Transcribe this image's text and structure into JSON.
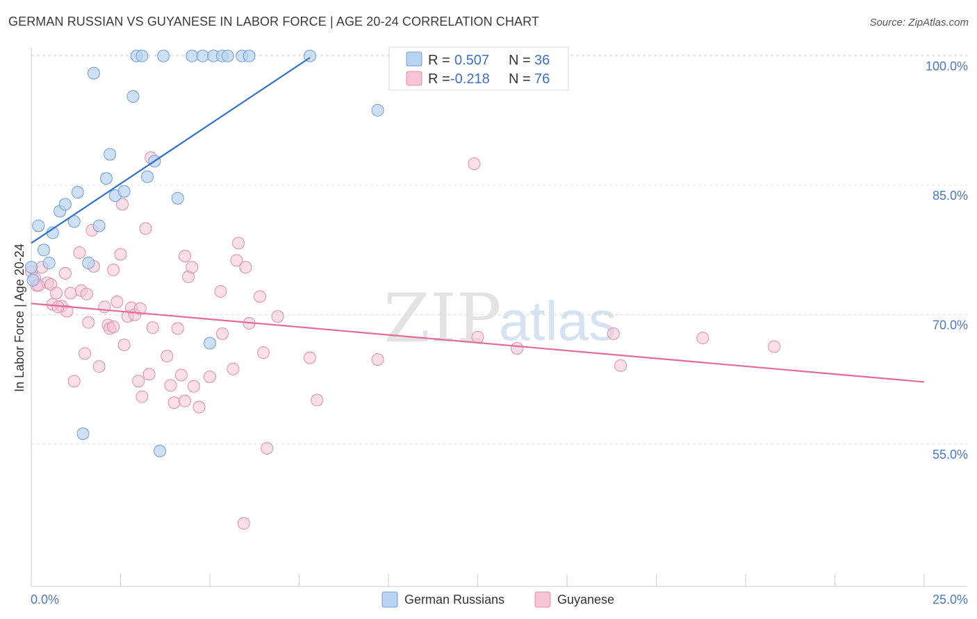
{
  "title": "GERMAN RUSSIAN VS GUYANESE IN LABOR FORCE | AGE 20-24 CORRELATION CHART",
  "source": "Source: ZipAtlas.com",
  "watermark": {
    "zip": "ZIP",
    "atlas": "atlas"
  },
  "legend": {
    "r_label": "R =",
    "n_label": "N =",
    "rows": [
      {
        "r": "0.507",
        "n": "36"
      },
      {
        "r": "-0.218",
        "n": "76"
      }
    ]
  },
  "colors": {
    "blue_fill": "#b9d3f2",
    "blue_stroke": "#6d9ed9",
    "blue_line": "#2f6fcc",
    "pink_fill": "#f7c5d5",
    "pink_stroke": "#e58aaa",
    "pink_line": "#e46a98",
    "tick_text": "#4a78c8",
    "grid": "#dddddd"
  },
  "chart_data": {
    "type": "scatter",
    "title": "GERMAN RUSSIAN VS GUYANESE IN LABOR FORCE | AGE 20-24 CORRELATION CHART",
    "xlabel": "",
    "ylabel": "In Labor Force | Age 20-24",
    "xlim": [
      0,
      25
    ],
    "ylim": [
      38.5,
      101.5
    ],
    "x_tick_labels": [
      "0.0%",
      "25.0%"
    ],
    "y_ticks": [
      55,
      70,
      85,
      100
    ],
    "y_tick_labels": [
      "55.0%",
      "70.0%",
      "85.0%",
      "100.0%"
    ],
    "grid": true,
    "legend_position": "top-center",
    "series": [
      {
        "name": "German Russians",
        "r": 0.507,
        "n": 36,
        "trend": {
          "x0": 0.0,
          "y0": 78.3,
          "x1": 7.8,
          "y1": 99.8
        },
        "points": [
          [
            0.0,
            75.5
          ],
          [
            0.2,
            80.3
          ],
          [
            0.35,
            77.5
          ],
          [
            0.5,
            76.0
          ],
          [
            0.6,
            79.5
          ],
          [
            0.8,
            82.0
          ],
          [
            0.95,
            82.8
          ],
          [
            1.2,
            80.8
          ],
          [
            1.3,
            84.2
          ],
          [
            1.6,
            76.0
          ],
          [
            1.75,
            98.0
          ],
          [
            1.9,
            80.3
          ],
          [
            2.1,
            85.8
          ],
          [
            2.2,
            88.6
          ],
          [
            2.35,
            83.8
          ],
          [
            2.6,
            84.3
          ],
          [
            2.85,
            95.3
          ],
          [
            2.95,
            100.0
          ],
          [
            3.1,
            100.0
          ],
          [
            3.25,
            86.0
          ],
          [
            3.45,
            87.8
          ],
          [
            3.7,
            100.0
          ],
          [
            4.1,
            83.5
          ],
          [
            4.5,
            100.0
          ],
          [
            4.8,
            100.0
          ],
          [
            5.1,
            100.0
          ],
          [
            5.35,
            100.0
          ],
          [
            5.5,
            100.0
          ],
          [
            5.9,
            100.0
          ],
          [
            6.1,
            100.0
          ],
          [
            7.8,
            100.0
          ],
          [
            9.7,
            93.7
          ],
          [
            5.0,
            66.7
          ],
          [
            1.45,
            56.2
          ],
          [
            3.6,
            54.2
          ],
          [
            0.05,
            74.0
          ]
        ]
      },
      {
        "name": "Guyanese",
        "r": -0.218,
        "n": 76,
        "trend": {
          "x0": 0.0,
          "y0": 71.3,
          "x1": 25.0,
          "y1": 62.2
        },
        "points": [
          [
            0.0,
            75.0
          ],
          [
            0.1,
            74.2
          ],
          [
            0.15,
            73.4
          ],
          [
            0.3,
            75.5
          ],
          [
            0.45,
            73.7
          ],
          [
            0.55,
            73.5
          ],
          [
            0.6,
            71.2
          ],
          [
            0.7,
            72.5
          ],
          [
            0.85,
            71.0
          ],
          [
            0.95,
            74.8
          ],
          [
            1.0,
            70.4
          ],
          [
            1.1,
            72.5
          ],
          [
            1.2,
            62.3
          ],
          [
            1.35,
            77.2
          ],
          [
            1.4,
            72.8
          ],
          [
            1.5,
            65.5
          ],
          [
            1.55,
            72.4
          ],
          [
            1.6,
            69.1
          ],
          [
            1.7,
            79.8
          ],
          [
            1.75,
            75.6
          ],
          [
            1.9,
            64.0
          ],
          [
            2.05,
            70.9
          ],
          [
            2.15,
            68.8
          ],
          [
            2.2,
            68.4
          ],
          [
            2.3,
            75.2
          ],
          [
            2.4,
            71.5
          ],
          [
            2.5,
            77.0
          ],
          [
            2.55,
            82.8
          ],
          [
            2.6,
            66.5
          ],
          [
            2.7,
            69.8
          ],
          [
            2.8,
            70.8
          ],
          [
            2.9,
            70.0
          ],
          [
            3.0,
            62.3
          ],
          [
            3.05,
            70.7
          ],
          [
            3.1,
            60.5
          ],
          [
            3.2,
            80.0
          ],
          [
            3.3,
            63.1
          ],
          [
            3.35,
            88.2
          ],
          [
            3.4,
            68.5
          ],
          [
            3.8,
            65.2
          ],
          [
            3.9,
            61.8
          ],
          [
            4.0,
            59.8
          ],
          [
            4.1,
            68.4
          ],
          [
            4.2,
            63.0
          ],
          [
            4.3,
            60.0
          ],
          [
            4.3,
            76.8
          ],
          [
            4.4,
            74.4
          ],
          [
            4.5,
            75.5
          ],
          [
            4.55,
            61.7
          ],
          [
            4.7,
            59.3
          ],
          [
            5.0,
            62.8
          ],
          [
            5.3,
            72.7
          ],
          [
            5.35,
            67.8
          ],
          [
            5.65,
            63.7
          ],
          [
            5.75,
            76.3
          ],
          [
            5.8,
            78.3
          ],
          [
            5.95,
            45.8
          ],
          [
            6.0,
            75.5
          ],
          [
            6.1,
            69.0
          ],
          [
            6.4,
            72.1
          ],
          [
            6.5,
            65.6
          ],
          [
            6.6,
            54.5
          ],
          [
            6.9,
            69.8
          ],
          [
            7.8,
            65.0
          ],
          [
            8.0,
            60.1
          ],
          [
            9.7,
            64.8
          ],
          [
            12.4,
            87.5
          ],
          [
            12.5,
            67.4
          ],
          [
            13.6,
            66.1
          ],
          [
            16.3,
            67.8
          ],
          [
            16.5,
            64.1
          ],
          [
            18.8,
            67.3
          ],
          [
            20.8,
            66.3
          ],
          [
            0.2,
            73.4
          ],
          [
            0.75,
            70.9
          ],
          [
            2.3,
            68.6
          ]
        ]
      }
    ]
  }
}
